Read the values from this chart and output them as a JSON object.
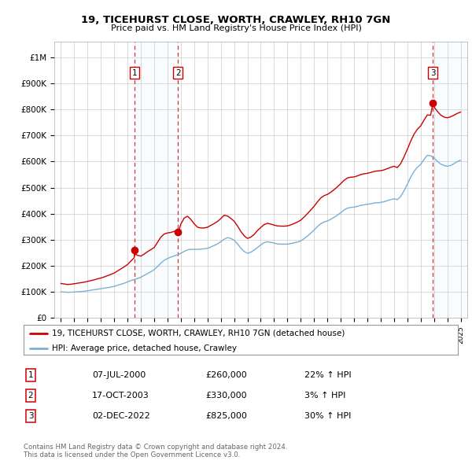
{
  "title": "19, TICEHURST CLOSE, WORTH, CRAWLEY, RH10 7GN",
  "subtitle": "Price paid vs. HM Land Registry's House Price Index (HPI)",
  "ylabel_ticks": [
    "£0",
    "£100K",
    "£200K",
    "£300K",
    "£400K",
    "£500K",
    "£600K",
    "£700K",
    "£800K",
    "£900K",
    "£1M"
  ],
  "ytick_values": [
    0,
    100000,
    200000,
    300000,
    400000,
    500000,
    600000,
    700000,
    800000,
    900000,
    1000000
  ],
  "ylim": [
    0,
    1060000
  ],
  "xlim_start": 1994.5,
  "xlim_end": 2025.5,
  "sale_dates": [
    2000.52,
    2003.79,
    2022.92
  ],
  "sale_prices": [
    260000,
    330000,
    825000
  ],
  "sale_labels": [
    "1",
    "2",
    "3"
  ],
  "legend_line1": "19, TICEHURST CLOSE, WORTH, CRAWLEY, RH10 7GN (detached house)",
  "legend_line2": "HPI: Average price, detached house, Crawley",
  "table_rows": [
    {
      "label": "1",
      "date": "07-JUL-2000",
      "price": "£260,000",
      "change": "22% ↑ HPI"
    },
    {
      "label": "2",
      "date": "17-OCT-2003",
      "price": "£330,000",
      "change": "3% ↑ HPI"
    },
    {
      "label": "3",
      "date": "02-DEC-2022",
      "price": "£825,000",
      "change": "30% ↑ HPI"
    }
  ],
  "footer": "Contains HM Land Registry data © Crown copyright and database right 2024.\nThis data is licensed under the Open Government Licence v3.0.",
  "red_color": "#cc0000",
  "blue_color": "#7bafd4",
  "shade_color": "#ddeeff",
  "grid_color": "#cccccc",
  "bg_color": "#ffffff",
  "plot_bg_color": "#ffffff",
  "hpi_crawley": [
    [
      1995.0,
      100000
    ],
    [
      1995.25,
      99000
    ],
    [
      1995.5,
      98000
    ],
    [
      1995.75,
      98500
    ],
    [
      1996.0,
      99000
    ],
    [
      1996.25,
      100000
    ],
    [
      1996.5,
      101000
    ],
    [
      1996.75,
      102000
    ],
    [
      1997.0,
      104000
    ],
    [
      1997.25,
      106000
    ],
    [
      1997.5,
      108000
    ],
    [
      1997.75,
      110000
    ],
    [
      1998.0,
      112000
    ],
    [
      1998.25,
      114000
    ],
    [
      1998.5,
      116000
    ],
    [
      1998.75,
      118000
    ],
    [
      1999.0,
      121000
    ],
    [
      1999.25,
      125000
    ],
    [
      1999.5,
      129000
    ],
    [
      1999.75,
      133000
    ],
    [
      2000.0,
      138000
    ],
    [
      2000.25,
      143000
    ],
    [
      2000.5,
      147000
    ],
    [
      2000.75,
      151000
    ],
    [
      2001.0,
      156000
    ],
    [
      2001.25,
      163000
    ],
    [
      2001.5,
      170000
    ],
    [
      2001.75,
      177000
    ],
    [
      2002.0,
      185000
    ],
    [
      2002.25,
      197000
    ],
    [
      2002.5,
      210000
    ],
    [
      2002.75,
      221000
    ],
    [
      2003.0,
      228000
    ],
    [
      2003.25,
      233000
    ],
    [
      2003.5,
      238000
    ],
    [
      2003.75,
      242000
    ],
    [
      2004.0,
      248000
    ],
    [
      2004.25,
      255000
    ],
    [
      2004.5,
      261000
    ],
    [
      2004.75,
      263000
    ],
    [
      2005.0,
      263000
    ],
    [
      2005.25,
      263000
    ],
    [
      2005.5,
      264000
    ],
    [
      2005.75,
      265000
    ],
    [
      2006.0,
      267000
    ],
    [
      2006.25,
      272000
    ],
    [
      2006.5,
      278000
    ],
    [
      2006.75,
      284000
    ],
    [
      2007.0,
      292000
    ],
    [
      2007.25,
      302000
    ],
    [
      2007.5,
      308000
    ],
    [
      2007.75,
      305000
    ],
    [
      2008.0,
      298000
    ],
    [
      2008.25,
      284000
    ],
    [
      2008.5,
      268000
    ],
    [
      2008.75,
      255000
    ],
    [
      2009.0,
      248000
    ],
    [
      2009.25,
      252000
    ],
    [
      2009.5,
      260000
    ],
    [
      2009.75,
      270000
    ],
    [
      2010.0,
      280000
    ],
    [
      2010.25,
      289000
    ],
    [
      2010.5,
      292000
    ],
    [
      2010.75,
      290000
    ],
    [
      2011.0,
      287000
    ],
    [
      2011.25,
      284000
    ],
    [
      2011.5,
      283000
    ],
    [
      2011.75,
      283000
    ],
    [
      2012.0,
      283000
    ],
    [
      2012.25,
      285000
    ],
    [
      2012.5,
      288000
    ],
    [
      2012.75,
      291000
    ],
    [
      2013.0,
      295000
    ],
    [
      2013.25,
      304000
    ],
    [
      2013.5,
      314000
    ],
    [
      2013.75,
      325000
    ],
    [
      2014.0,
      337000
    ],
    [
      2014.25,
      350000
    ],
    [
      2014.5,
      361000
    ],
    [
      2014.75,
      368000
    ],
    [
      2015.0,
      372000
    ],
    [
      2015.25,
      378000
    ],
    [
      2015.5,
      386000
    ],
    [
      2015.75,
      394000
    ],
    [
      2016.0,
      404000
    ],
    [
      2016.25,
      414000
    ],
    [
      2016.5,
      421000
    ],
    [
      2016.75,
      424000
    ],
    [
      2017.0,
      425000
    ],
    [
      2017.25,
      428000
    ],
    [
      2017.5,
      432000
    ],
    [
      2017.75,
      434000
    ],
    [
      2018.0,
      436000
    ],
    [
      2018.25,
      438000
    ],
    [
      2018.5,
      441000
    ],
    [
      2018.75,
      442000
    ],
    [
      2019.0,
      443000
    ],
    [
      2019.25,
      446000
    ],
    [
      2019.5,
      450000
    ],
    [
      2019.75,
      454000
    ],
    [
      2020.0,
      457000
    ],
    [
      2020.25,
      454000
    ],
    [
      2020.5,
      466000
    ],
    [
      2020.75,
      488000
    ],
    [
      2021.0,
      513000
    ],
    [
      2021.25,
      540000
    ],
    [
      2021.5,
      562000
    ],
    [
      2021.75,
      578000
    ],
    [
      2022.0,
      589000
    ],
    [
      2022.25,
      608000
    ],
    [
      2022.5,
      624000
    ],
    [
      2022.75,
      622000
    ],
    [
      2023.0,
      615000
    ],
    [
      2023.25,
      601000
    ],
    [
      2023.5,
      591000
    ],
    [
      2023.75,
      585000
    ],
    [
      2024.0,
      582000
    ],
    [
      2024.25,
      585000
    ],
    [
      2024.5,
      592000
    ],
    [
      2024.75,
      600000
    ],
    [
      2025.0,
      605000
    ]
  ],
  "red_line": [
    [
      1995.0,
      132000
    ],
    [
      1995.25,
      130000
    ],
    [
      1995.5,
      128000
    ],
    [
      1995.75,
      129000
    ],
    [
      1996.0,
      131000
    ],
    [
      1996.25,
      133000
    ],
    [
      1996.5,
      135000
    ],
    [
      1996.75,
      137000
    ],
    [
      1997.0,
      140000
    ],
    [
      1997.25,
      143000
    ],
    [
      1997.5,
      146000
    ],
    [
      1997.75,
      150000
    ],
    [
      1998.0,
      153000
    ],
    [
      1998.25,
      157000
    ],
    [
      1998.5,
      162000
    ],
    [
      1998.75,
      167000
    ],
    [
      1999.0,
      172000
    ],
    [
      1999.25,
      180000
    ],
    [
      1999.5,
      188000
    ],
    [
      1999.75,
      196000
    ],
    [
      2000.0,
      205000
    ],
    [
      2000.25,
      218000
    ],
    [
      2000.5,
      231000
    ],
    [
      2000.52,
      260000
    ],
    [
      2000.58,
      245000
    ],
    [
      2000.75,
      240000
    ],
    [
      2001.0,
      237000
    ],
    [
      2001.25,
      245000
    ],
    [
      2001.5,
      254000
    ],
    [
      2001.75,
      262000
    ],
    [
      2002.0,
      270000
    ],
    [
      2002.25,
      290000
    ],
    [
      2002.5,
      310000
    ],
    [
      2002.75,
      322000
    ],
    [
      2003.0,
      326000
    ],
    [
      2003.25,
      328000
    ],
    [
      2003.5,
      332000
    ],
    [
      2003.75,
      337000
    ],
    [
      2003.79,
      330000
    ],
    [
      2003.85,
      335000
    ],
    [
      2004.0,
      360000
    ],
    [
      2004.25,
      383000
    ],
    [
      2004.5,
      390000
    ],
    [
      2004.75,
      378000
    ],
    [
      2005.0,
      361000
    ],
    [
      2005.25,
      348000
    ],
    [
      2005.5,
      345000
    ],
    [
      2005.75,
      345000
    ],
    [
      2006.0,
      348000
    ],
    [
      2006.25,
      355000
    ],
    [
      2006.5,
      362000
    ],
    [
      2006.75,
      370000
    ],
    [
      2007.0,
      381000
    ],
    [
      2007.25,
      394000
    ],
    [
      2007.5,
      391000
    ],
    [
      2007.75,
      382000
    ],
    [
      2008.0,
      371000
    ],
    [
      2008.25,
      353000
    ],
    [
      2008.5,
      332000
    ],
    [
      2008.75,
      315000
    ],
    [
      2009.0,
      305000
    ],
    [
      2009.25,
      310000
    ],
    [
      2009.5,
      320000
    ],
    [
      2009.75,
      335000
    ],
    [
      2010.0,
      347000
    ],
    [
      2010.25,
      358000
    ],
    [
      2010.5,
      363000
    ],
    [
      2010.75,
      360000
    ],
    [
      2011.0,
      356000
    ],
    [
      2011.25,
      353000
    ],
    [
      2011.5,
      352000
    ],
    [
      2011.75,
      352000
    ],
    [
      2012.0,
      353000
    ],
    [
      2012.25,
      357000
    ],
    [
      2012.5,
      362000
    ],
    [
      2012.75,
      368000
    ],
    [
      2013.0,
      375000
    ],
    [
      2013.25,
      387000
    ],
    [
      2013.5,
      400000
    ],
    [
      2013.75,
      414000
    ],
    [
      2014.0,
      428000
    ],
    [
      2014.25,
      445000
    ],
    [
      2014.5,
      460000
    ],
    [
      2014.75,
      469000
    ],
    [
      2015.0,
      474000
    ],
    [
      2015.25,
      482000
    ],
    [
      2015.5,
      492000
    ],
    [
      2015.75,
      503000
    ],
    [
      2016.0,
      515000
    ],
    [
      2016.25,
      528000
    ],
    [
      2016.5,
      537000
    ],
    [
      2016.75,
      540000
    ],
    [
      2017.0,
      541000
    ],
    [
      2017.25,
      545000
    ],
    [
      2017.5,
      550000
    ],
    [
      2017.75,
      553000
    ],
    [
      2018.0,
      555000
    ],
    [
      2018.25,
      558000
    ],
    [
      2018.5,
      562000
    ],
    [
      2018.75,
      564000
    ],
    [
      2019.0,
      565000
    ],
    [
      2019.25,
      568000
    ],
    [
      2019.5,
      573000
    ],
    [
      2019.75,
      578000
    ],
    [
      2020.0,
      582000
    ],
    [
      2020.25,
      577000
    ],
    [
      2020.5,
      592000
    ],
    [
      2020.75,
      618000
    ],
    [
      2021.0,
      647000
    ],
    [
      2021.25,
      678000
    ],
    [
      2021.5,
      705000
    ],
    [
      2021.75,
      724000
    ],
    [
      2022.0,
      737000
    ],
    [
      2022.25,
      759000
    ],
    [
      2022.5,
      779000
    ],
    [
      2022.75,
      778000
    ],
    [
      2022.92,
      825000
    ],
    [
      2023.0,
      810000
    ],
    [
      2023.25,
      793000
    ],
    [
      2023.5,
      779000
    ],
    [
      2023.75,
      771000
    ],
    [
      2024.0,
      768000
    ],
    [
      2024.25,
      772000
    ],
    [
      2024.5,
      778000
    ],
    [
      2024.75,
      785000
    ],
    [
      2025.0,
      790000
    ]
  ]
}
